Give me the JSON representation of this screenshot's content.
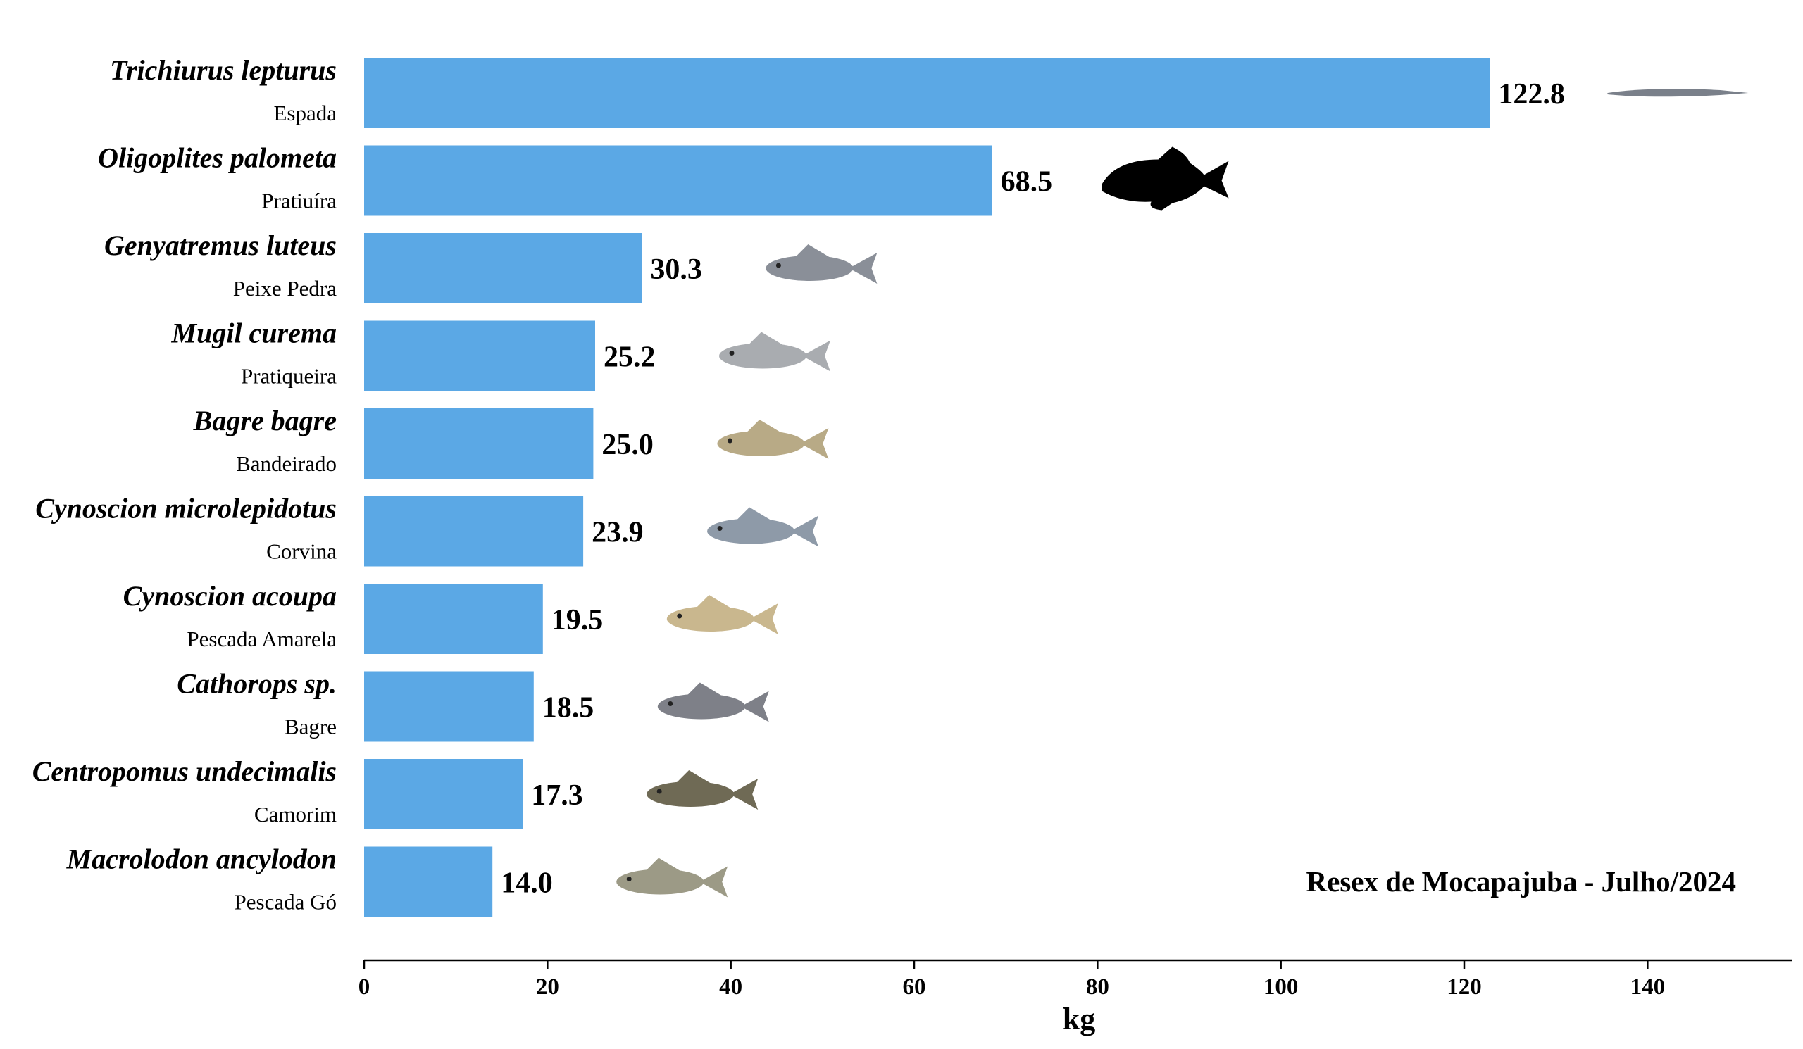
{
  "chart_data": {
    "type": "bar",
    "orientation": "horizontal",
    "categories": [
      {
        "scientific_name": "Trichiurus lepturus",
        "common_name": "Espada",
        "value": 122.8,
        "value_label": "122.8",
        "icon": "cutlassfish-photo-icon"
      },
      {
        "scientific_name": "Oligoplites palometa",
        "common_name": "Pratiuíra",
        "value": 68.5,
        "value_label": "68.5",
        "icon": "fish-silhouette-icon"
      },
      {
        "scientific_name": "Genyatremus luteus",
        "common_name": "Peixe Pedra",
        "value": 30.3,
        "value_label": "30.3",
        "icon": "grunt-photo-icon"
      },
      {
        "scientific_name": "Mugil curema",
        "common_name": "Pratiqueira",
        "value": 25.2,
        "value_label": "25.2",
        "icon": "mullet-photo-icon"
      },
      {
        "scientific_name": "Bagre bagre",
        "common_name": "Bandeirado",
        "value": 25.0,
        "value_label": "25.0",
        "icon": "catfish-photo-icon"
      },
      {
        "scientific_name": "Cynoscion microlepidotus",
        "common_name": "Corvina",
        "value": 23.9,
        "value_label": "23.9",
        "icon": "weakfish-photo-icon"
      },
      {
        "scientific_name": "Cynoscion acoupa",
        "common_name": "Pescada Amarela",
        "value": 19.5,
        "value_label": "19.5",
        "icon": "acoupa-photo-icon"
      },
      {
        "scientific_name": "Cathorops sp.",
        "common_name": "Bagre",
        "value": 18.5,
        "value_label": "18.5",
        "icon": "sea-catfish-photo-icon"
      },
      {
        "scientific_name": "Centropomus undecimalis",
        "common_name": "Camorim",
        "value": 17.3,
        "value_label": "17.3",
        "icon": "snook-photo-icon"
      },
      {
        "scientific_name": "Macrolodon ancylodon",
        "common_name": "Pescada Gó",
        "value": 14.0,
        "value_label": "14.0",
        "icon": "king-weakfish-photo-icon"
      }
    ],
    "xlabel": "kg",
    "ylabel": "",
    "xlim": [
      0,
      160
    ],
    "xticks": [
      0,
      20,
      40,
      60,
      80,
      100,
      120,
      140
    ],
    "grid": false,
    "legend": "none",
    "annotation": "Resex de Mocapajuba - Julho/2024",
    "bar_color": "#5BA8E5"
  }
}
